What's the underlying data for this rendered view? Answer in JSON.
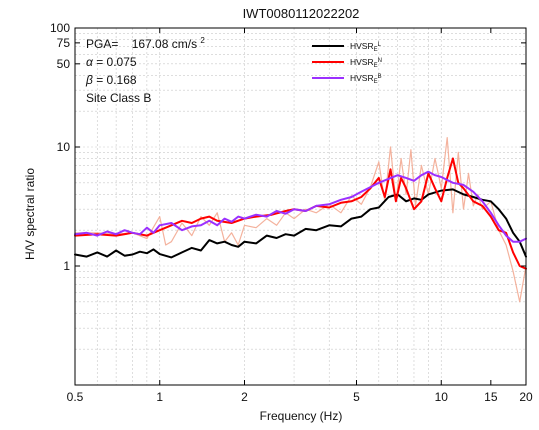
{
  "chart_data": {
    "type": "line",
    "title": "IWT0080112022202",
    "xlabel": "Frequency (Hz)",
    "ylabel": "H/V spectral ratio",
    "x_scale": "log",
    "y_scale": "log",
    "xlim": [
      0.5,
      20
    ],
    "ylim": [
      0.1,
      100
    ],
    "grid": true,
    "x_ticks": [
      {
        "value": 0.5,
        "label": "0.5"
      },
      {
        "value": 1,
        "label": "1"
      },
      {
        "value": 2,
        "label": "2"
      },
      {
        "value": 5,
        "label": "5"
      },
      {
        "value": 10,
        "label": "10"
      },
      {
        "value": 15,
        "label": "15"
      },
      {
        "value": 20,
        "label": "20"
      }
    ],
    "y_ticks": [
      {
        "value": 1,
        "label": "1"
      },
      {
        "value": 10,
        "label": "10"
      },
      {
        "value": 50,
        "label": "50"
      },
      {
        "value": 75,
        "label": "75"
      },
      {
        "value": 100,
        "label": "100"
      }
    ],
    "annotations": {
      "pga_label": "PGA=",
      "pga_value": "167.08 cm/s",
      "pga_exp": "2",
      "alpha_symbol": "α",
      "alpha_text": "= 0.075",
      "beta_symbol": "β",
      "beta_text": "= 0.168",
      "site_class": "Site Class B"
    },
    "legend": {
      "placement": "top-right",
      "entries": [
        {
          "base": "HVSR",
          "sub": "E",
          "sup": "L",
          "color": "#000000"
        },
        {
          "base": "HVSR",
          "sub": "E",
          "sup": "N",
          "color": "#ff0000"
        },
        {
          "base": "HVSR",
          "sub": "E",
          "sup": "B",
          "color": "#9b30ff"
        }
      ]
    },
    "series": [
      {
        "color": "#f2a58c",
        "x": [
          0.5,
          0.6,
          0.7,
          0.8,
          0.9,
          1.0,
          1.05,
          1.1,
          1.2,
          1.3,
          1.4,
          1.5,
          1.6,
          1.7,
          1.8,
          1.9,
          2.0,
          2.2,
          2.4,
          2.6,
          2.8,
          3.0,
          3.3,
          3.6,
          4.0,
          4.4,
          4.8,
          5.2,
          5.6,
          6.0,
          6.3,
          6.6,
          6.9,
          7.2,
          7.5,
          7.8,
          8.1,
          8.5,
          9.0,
          9.5,
          10.0,
          10.5,
          11.0,
          11.5,
          12.0,
          12.5,
          13.0,
          13.5,
          14.0,
          15.0,
          16.0,
          17.0,
          18.0,
          19.0,
          20.0
        ],
        "y": [
          1.9,
          1.9,
          1.85,
          1.9,
          1.7,
          2.6,
          1.5,
          1.6,
          2.3,
          1.8,
          2.6,
          2.2,
          2.8,
          1.6,
          1.9,
          1.5,
          2.2,
          2.1,
          2.5,
          2.2,
          2.8,
          2.5,
          3.0,
          2.8,
          3.3,
          2.8,
          3.9,
          3.3,
          4.6,
          7.5,
          3.5,
          10.0,
          3.5,
          8.0,
          4.0,
          9.5,
          3.2,
          7.0,
          4.0,
          8.0,
          4.5,
          12.0,
          2.8,
          9.0,
          3.0,
          6.0,
          3.2,
          4.0,
          3.0,
          3.5,
          2.0,
          1.5,
          0.9,
          0.5,
          1.0
        ]
      },
      {
        "name": "HVSR_E^L",
        "color": "#000000",
        "x": [
          0.5,
          0.55,
          0.6,
          0.65,
          0.7,
          0.75,
          0.8,
          0.85,
          0.9,
          0.95,
          1.0,
          1.1,
          1.2,
          1.3,
          1.4,
          1.5,
          1.6,
          1.7,
          1.8,
          1.9,
          2.0,
          2.2,
          2.4,
          2.6,
          2.8,
          3.0,
          3.3,
          3.6,
          4.0,
          4.4,
          4.8,
          5.2,
          5.6,
          6.0,
          6.5,
          7.0,
          7.5,
          8.0,
          8.5,
          9.0,
          10.0,
          11.0,
          12.0,
          13.0,
          14.0,
          15.0,
          16.0,
          17.0,
          18.0,
          19.0,
          20.0
        ],
        "y": [
          1.25,
          1.2,
          1.3,
          1.2,
          1.35,
          1.22,
          1.25,
          1.32,
          1.28,
          1.38,
          1.26,
          1.18,
          1.3,
          1.42,
          1.35,
          1.65,
          1.55,
          1.6,
          1.5,
          1.45,
          1.6,
          1.55,
          1.8,
          1.72,
          1.85,
          1.8,
          2.05,
          2.0,
          2.2,
          2.15,
          2.5,
          2.6,
          3.0,
          3.1,
          3.8,
          4.0,
          3.5,
          3.7,
          3.6,
          4.0,
          4.3,
          4.4,
          4.0,
          3.8,
          3.6,
          3.5,
          3.0,
          2.5,
          1.9,
          1.6,
          1.2
        ]
      },
      {
        "name": "HVSR_E^N",
        "color": "#ff0000",
        "x": [
          0.5,
          0.6,
          0.7,
          0.8,
          0.9,
          1.0,
          1.1,
          1.2,
          1.3,
          1.4,
          1.5,
          1.6,
          1.8,
          2.0,
          2.2,
          2.5,
          2.8,
          3.0,
          3.3,
          3.6,
          4.0,
          4.4,
          4.8,
          5.2,
          5.6,
          6.0,
          6.3,
          6.6,
          6.9,
          7.2,
          7.5,
          8.0,
          8.5,
          9.0,
          9.5,
          10.0,
          10.5,
          11.0,
          11.5,
          12.0,
          13.0,
          14.0,
          15.0,
          16.0,
          17.0,
          18.0,
          19.0,
          20.0
        ],
        "y": [
          1.8,
          1.85,
          1.8,
          1.9,
          1.8,
          2.0,
          2.2,
          2.4,
          2.3,
          2.5,
          2.6,
          2.4,
          2.3,
          2.5,
          2.6,
          2.7,
          2.9,
          3.0,
          2.9,
          3.2,
          3.1,
          3.4,
          3.5,
          3.8,
          4.5,
          5.5,
          3.8,
          6.5,
          3.5,
          5.5,
          4.5,
          3.0,
          3.5,
          6.0,
          4.5,
          3.5,
          5.5,
          8.0,
          5.0,
          4.5,
          3.5,
          3.2,
          2.6,
          2.0,
          1.9,
          1.3,
          1.0,
          0.95
        ]
      },
      {
        "name": "HVSR_E^B",
        "color": "#9b30ff",
        "x": [
          0.5,
          0.55,
          0.6,
          0.65,
          0.7,
          0.75,
          0.8,
          0.85,
          0.9,
          0.95,
          1.0,
          1.1,
          1.2,
          1.3,
          1.4,
          1.5,
          1.6,
          1.7,
          1.8,
          1.9,
          2.0,
          2.2,
          2.4,
          2.6,
          2.8,
          3.0,
          3.3,
          3.6,
          4.0,
          4.4,
          4.8,
          5.2,
          5.6,
          6.0,
          6.5,
          7.0,
          7.5,
          8.0,
          8.5,
          9.0,
          9.5,
          10.0,
          11.0,
          12.0,
          13.0,
          14.0,
          15.0,
          16.0,
          17.0,
          18.0,
          19.0,
          20.0
        ],
        "y": [
          1.85,
          1.9,
          1.8,
          1.95,
          1.85,
          2.0,
          1.9,
          1.85,
          2.1,
          1.9,
          2.2,
          2.3,
          2.0,
          2.15,
          2.2,
          2.4,
          2.2,
          2.5,
          2.35,
          2.6,
          2.5,
          2.7,
          2.6,
          2.9,
          2.75,
          3.0,
          2.9,
          3.2,
          3.3,
          3.6,
          3.8,
          4.2,
          4.6,
          5.0,
          5.4,
          5.8,
          5.5,
          5.2,
          5.8,
          6.2,
          5.8,
          5.6,
          5.0,
          4.8,
          4.2,
          3.5,
          2.8,
          2.2,
          1.8,
          1.6,
          1.6,
          1.7
        ]
      }
    ]
  }
}
